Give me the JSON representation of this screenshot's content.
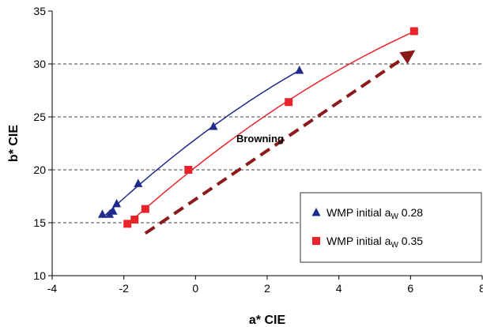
{
  "chart_data": {
    "type": "scatter",
    "xlabel": "a* CIE",
    "ylabel": "b* CIE",
    "xlim": [
      -4,
      8
    ],
    "ylim": [
      10,
      35
    ],
    "x_ticks": [
      -4,
      -2,
      0,
      2,
      4,
      6,
      8
    ],
    "y_ticks": [
      10,
      15,
      20,
      25,
      30,
      35
    ],
    "grid": "horizontal dashed",
    "series": [
      {
        "name": "WMP initial a",
        "name_subscript": "W",
        "name_suffix": " 0.28",
        "marker": "triangle",
        "color": "#1f2a8a",
        "trend": "curve",
        "points": [
          [
            -2.6,
            15.8
          ],
          [
            -2.4,
            15.8
          ],
          [
            -2.3,
            16.1
          ],
          [
            -2.2,
            16.8
          ],
          [
            -1.6,
            18.7
          ],
          [
            0.5,
            24.1
          ],
          [
            2.9,
            29.4
          ]
        ]
      },
      {
        "name": "WMP initial a",
        "name_subscript": "W",
        "name_suffix": " 0.35",
        "marker": "square",
        "color": "#e8232a",
        "trend": "curve",
        "points": [
          [
            -1.9,
            14.9
          ],
          [
            -1.7,
            15.3
          ],
          [
            -1.4,
            16.3
          ],
          [
            -0.2,
            20.0
          ],
          [
            2.6,
            26.4
          ],
          [
            6.1,
            33.1
          ]
        ]
      }
    ],
    "annotations": [
      {
        "text": "Browning",
        "x": 1.8,
        "y": 22.6
      }
    ],
    "arrow": {
      "from": [
        -1.4,
        14.0
      ],
      "to": [
        6.0,
        31.0
      ],
      "color": "#8b1a1a",
      "style": "dashed"
    },
    "legend_position": "bottom-right"
  }
}
